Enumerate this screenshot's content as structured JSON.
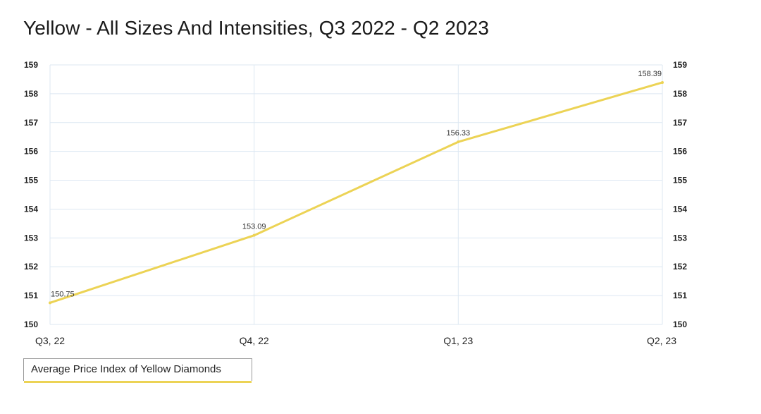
{
  "chart_data": {
    "type": "line",
    "title": "Yellow - All Sizes And Intensities, Q3 2022 - Q2 2023",
    "categories": [
      "Q3, 22",
      "Q4, 22",
      "Q1, 23",
      "Q2, 23"
    ],
    "series": [
      {
        "name": "Average Price Index of Yellow Diamonds",
        "values": [
          150.75,
          153.09,
          156.33,
          158.39
        ],
        "color": "#ecd355"
      }
    ],
    "ylim": [
      150,
      159
    ],
    "yticks": [
      "150",
      "151",
      "152",
      "153",
      "154",
      "155",
      "156",
      "157",
      "158",
      "159"
    ],
    "data_labels": [
      "150.75",
      "153.09",
      "156.33",
      "158.39"
    ],
    "xlabel": "",
    "ylabel": "",
    "dual_y_axis": true,
    "grid": true,
    "legend_position": "bottom-left",
    "colors": {
      "line": "#ecd355",
      "grid": "#dce7f2",
      "text": "#222222"
    }
  }
}
